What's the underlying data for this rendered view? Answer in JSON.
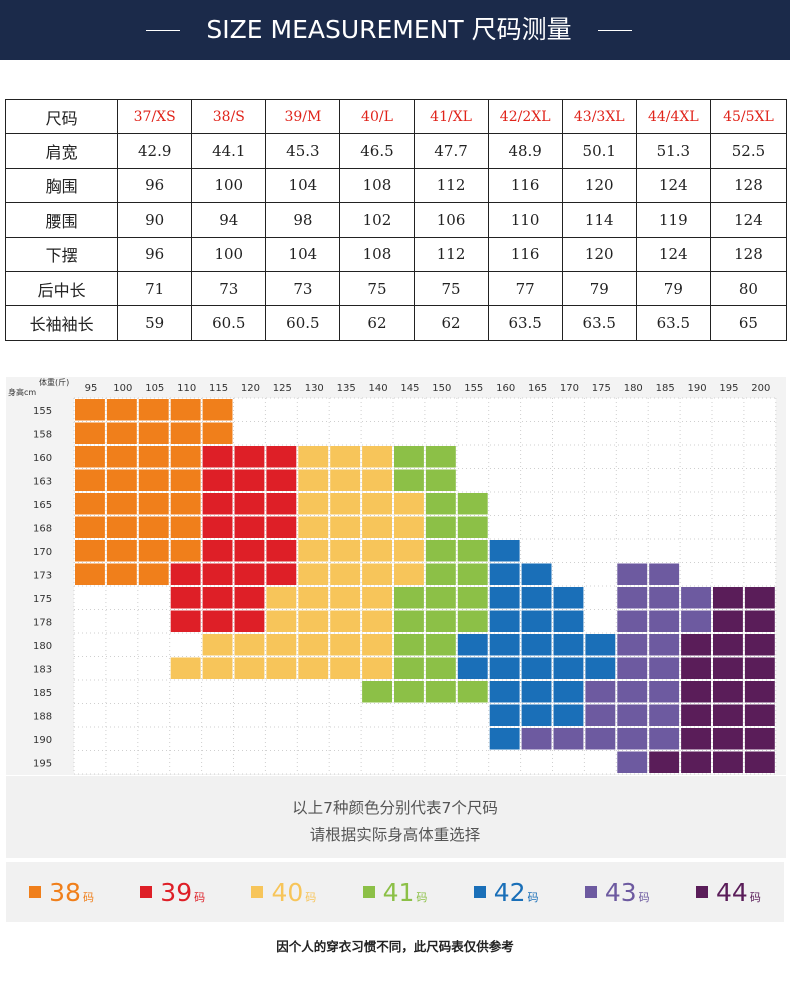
{
  "header": {
    "title": "SIZE MEASUREMENT   尺码测量"
  },
  "size_table": {
    "head_label": "尺码",
    "sizes": [
      "37/XS",
      "38/S",
      "39/M",
      "40/L",
      "41/XL",
      "42/2XL",
      "43/3XL",
      "44/4XL",
      "45/5XL"
    ],
    "rows": [
      {
        "label": "肩宽",
        "values": [
          "42.9",
          "44.1",
          "45.3",
          "46.5",
          "47.7",
          "48.9",
          "50.1",
          "51.3",
          "52.5"
        ]
      },
      {
        "label": "胸围",
        "values": [
          "96",
          "100",
          "104",
          "108",
          "112",
          "116",
          "120",
          "124",
          "128"
        ]
      },
      {
        "label": "腰围",
        "values": [
          "90",
          "94",
          "98",
          "102",
          "106",
          "110",
          "114",
          "119",
          "124"
        ]
      },
      {
        "label": "下摆",
        "values": [
          "96",
          "100",
          "104",
          "108",
          "112",
          "116",
          "120",
          "124",
          "128"
        ]
      },
      {
        "label": "后中长",
        "values": [
          "71",
          "73",
          "73",
          "75",
          "75",
          "77",
          "79",
          "79",
          "80"
        ]
      },
      {
        "label": "长袖袖长",
        "values": [
          "59",
          "60.5",
          "60.5",
          "62",
          "62",
          "63.5",
          "63.5",
          "63.5",
          "65"
        ]
      }
    ]
  },
  "chart_data": {
    "type": "heatmap",
    "corner_top_label": "体重(斤)",
    "corner_left_label": "身高cm",
    "x_labels": [
      "95",
      "100",
      "105",
      "110",
      "115",
      "120",
      "125",
      "130",
      "135",
      "140",
      "145",
      "150",
      "155",
      "160",
      "165",
      "170",
      "175",
      "180",
      "185",
      "190",
      "195",
      "200"
    ],
    "y_labels": [
      "155",
      "158",
      "160",
      "163",
      "165",
      "168",
      "170",
      "173",
      "175",
      "178",
      "180",
      "183",
      "185",
      "188",
      "190",
      "195"
    ],
    "colors": {
      "38": "#f07f1b",
      "39": "#de1f27",
      "40": "#f7c55a",
      "41": "#8cc047",
      "42": "#1a6fb8",
      "43": "#6d5aa0",
      "44": "#5a1d59"
    },
    "grid": [
      "38 38 38 38 38 .. .. .. .. .. .. .. .. .. .. .. .. .. .. .. .. ..",
      "38 38 38 38 38 .. .. .. .. .. .. .. .. .. .. .. .. .. .. .. .. ..",
      "38 38 38 38 39 39 39 40 40 40 41 41 .. .. .. .. .. .. .. .. .. ..",
      "38 38 38 38 39 39 39 40 40 40 41 41 .. .. .. .. .. .. .. .. .. ..",
      "38 38 38 38 39 39 39 40 40 40 40 41 41 .. .. .. .. .. .. .. .. ..",
      "38 38 38 38 39 39 39 40 40 40 40 41 41 .. .. .. .. .. .. .. .. ..",
      "38 38 38 38 39 39 39 40 40 40 40 41 41 42 .. .. .. .. .. .. .. ..",
      "38 38 38 39 39 39 39 40 40 40 40 41 41 42 42 .. .. 43 43 .. .. ..",
      ".. .. .. 39 39 39 40 40 40 40 41 41 41 42 42 42 .. 43 43 43 44 44",
      ".. .. .. 39 39 39 40 40 40 40 41 41 41 42 42 42 .. 43 43 43 44 44",
      ".. .. .. .. 40 40 40 40 40 40 41 41 42 42 42 42 42 43 43 44 44 44",
      ".. .. .. 40 40 40 40 40 40 40 41 41 42 42 42 42 42 43 43 44 44 44",
      ".. .. .. .. .. .. .. .. .. 41 41 41 41 42 42 42 43 43 43 44 44 44",
      ".. .. .. .. .. .. .. .. .. .. .. .. .. 42 42 42 43 43 43 44 44 44",
      ".. .. .. .. .. .. .. .. .. .. .. .. .. 42 43 43 43 43 43 44 44 44",
      ".. .. .. .. .. .. .. .. .. .. .. .. .. .. .. .. .. 43 44 44 44 44"
    ]
  },
  "notes": {
    "line1": "以上7种颜色分别代表7个尺码",
    "line2": "请根据实际身高体重选择"
  },
  "legend": {
    "unit": "码",
    "items": [
      {
        "num": "38",
        "color": "#f07f1b"
      },
      {
        "num": "39",
        "color": "#de1f27"
      },
      {
        "num": "40",
        "color": "#f7c55a"
      },
      {
        "num": "41",
        "color": "#8cc047"
      },
      {
        "num": "42",
        "color": "#1a6fb8"
      },
      {
        "num": "43",
        "color": "#6d5aa0"
      },
      {
        "num": "44",
        "color": "#5a1d59"
      }
    ]
  },
  "disclaimer": "因个人的穿衣习惯不同，此尺码表仅供参考"
}
